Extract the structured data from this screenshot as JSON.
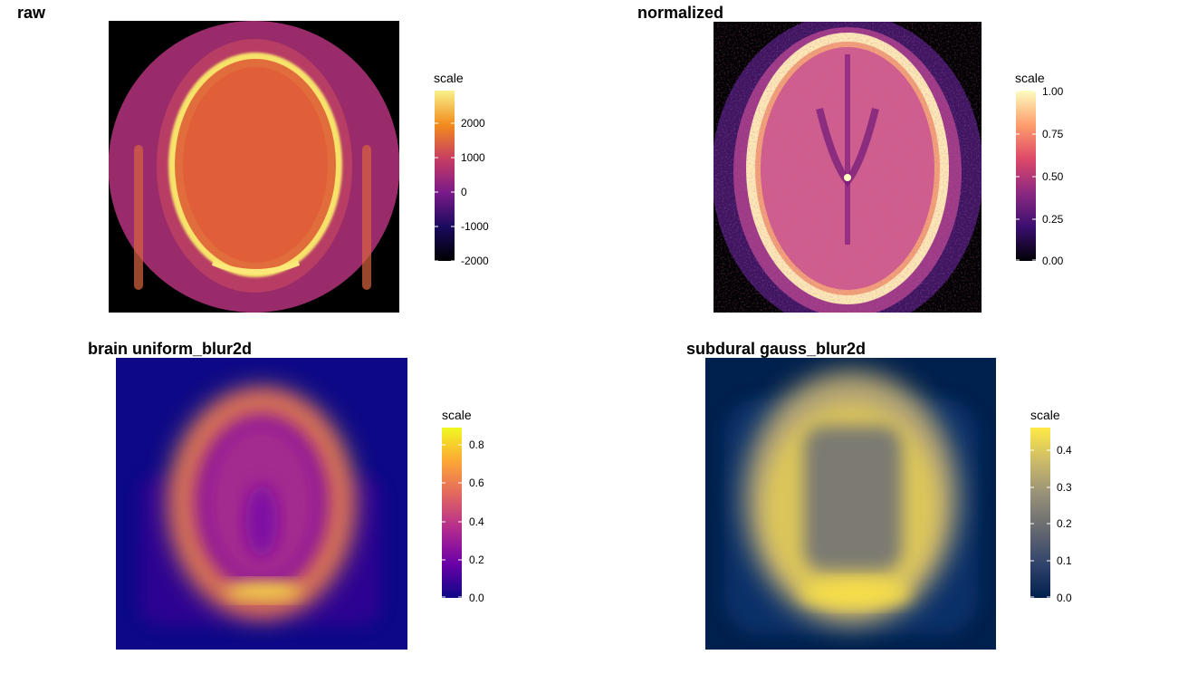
{
  "chart_data": [
    {
      "type": "heatmap",
      "title": "raw",
      "colormap": "plasma",
      "legend": {
        "title": "scale",
        "ticks": [
          2000,
          1000,
          0,
          -1000,
          -2000
        ],
        "range": [
          -2000,
          3000
        ]
      }
    },
    {
      "type": "heatmap",
      "title": "normalized",
      "colormap": "magma",
      "legend": {
        "title": "scale",
        "ticks": [
          "1.00",
          "0.75",
          "0.50",
          "0.25",
          "0.00"
        ],
        "range": [
          0,
          1
        ]
      }
    },
    {
      "type": "heatmap",
      "title": "brain uniform_blur2d",
      "colormap": "plasma",
      "legend": {
        "title": "scale",
        "ticks": [
          "0.8",
          "0.6",
          "0.4",
          "0.2",
          "0.0"
        ],
        "range": [
          0,
          0.9
        ]
      }
    },
    {
      "type": "heatmap",
      "title": "subdural gauss_blur2d",
      "colormap": "cividis",
      "legend": {
        "title": "scale",
        "ticks": [
          "0.4",
          "0.3",
          "0.2",
          "0.1",
          "0.0"
        ],
        "range": [
          0,
          0.47
        ]
      }
    }
  ],
  "colors": {
    "plasma": [
      "#0d0887",
      "#6a00a8",
      "#b12a90",
      "#e16462",
      "#fca636",
      "#f0f921"
    ],
    "magma": [
      "#000004",
      "#3b0f70",
      "#8c2981",
      "#de4968",
      "#fe9f6d",
      "#fcfdbf"
    ],
    "cividis": [
      "#00204d",
      "#31446b",
      "#666970",
      "#958f78",
      "#cbba69",
      "#ffea46"
    ]
  }
}
